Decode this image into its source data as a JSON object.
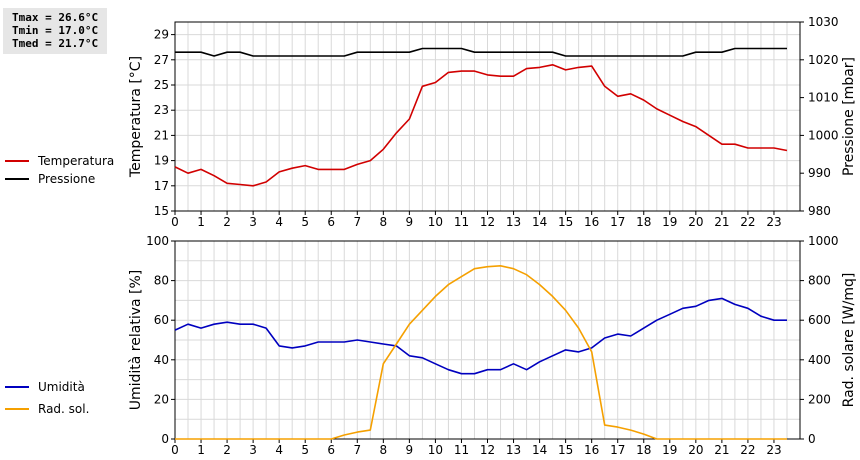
{
  "stats": {
    "tmax": "Tmax = 26.6°C",
    "tmin": "Tmin = 17.0°C",
    "tmed": "Tmed = 21.7°C"
  },
  "colors": {
    "red": "#d10000",
    "black": "#000000",
    "blue": "#0000bf",
    "orange": "#f5a000",
    "grid": "#d9d9d9"
  },
  "chart_data": [
    {
      "type": "line",
      "xlim": [
        0,
        24
      ],
      "x_ticks": [
        0,
        1,
        2,
        3,
        4,
        5,
        6,
        7,
        8,
        9,
        10,
        11,
        12,
        13,
        14,
        15,
        16,
        17,
        18,
        19,
        20,
        21,
        22,
        23
      ],
      "left_axis": {
        "label": "Temperatura [°C]",
        "ylim": [
          15,
          30
        ],
        "ticks": [
          15,
          17,
          19,
          21,
          23,
          25,
          27,
          29
        ]
      },
      "right_axis": {
        "label": "Pressione [mbar]",
        "ylim": [
          980,
          1030
        ],
        "ticks": [
          980,
          990,
          1000,
          1010,
          1020,
          1030
        ]
      },
      "grid": true,
      "legend_position": "left",
      "series": [
        {
          "name": "Temperatura",
          "axis": "left",
          "color": "#d10000",
          "x": [
            0,
            0.5,
            1,
            1.5,
            2,
            2.5,
            3,
            3.5,
            4,
            4.5,
            5,
            5.5,
            6,
            6.5,
            7,
            7.5,
            8,
            8.5,
            9,
            9.5,
            10,
            10.5,
            11,
            11.5,
            12,
            12.5,
            13,
            13.5,
            14,
            14.5,
            15,
            15.5,
            16,
            16.5,
            17,
            17.5,
            18,
            18.5,
            19,
            19.5,
            20,
            20.5,
            21,
            21.5,
            22,
            22.5,
            23,
            23.5
          ],
          "y": [
            18.5,
            18.0,
            18.3,
            17.8,
            17.2,
            17.1,
            17.0,
            17.3,
            18.1,
            18.4,
            18.6,
            18.3,
            18.3,
            18.3,
            18.7,
            19.0,
            19.9,
            21.2,
            22.3,
            24.9,
            25.2,
            26.0,
            26.1,
            26.1,
            25.8,
            25.7,
            25.7,
            26.3,
            26.4,
            26.6,
            26.2,
            26.4,
            26.5,
            24.9,
            24.1,
            24.3,
            23.8,
            23.1,
            22.6,
            22.1,
            21.7,
            21.0,
            20.3,
            20.3,
            20.0,
            20.0,
            20.0,
            19.8
          ]
        },
        {
          "name": "Pressione",
          "axis": "right",
          "color": "#000000",
          "x": [
            0,
            0.5,
            1,
            1.5,
            2,
            2.5,
            3,
            3.5,
            4,
            4.5,
            5,
            5.5,
            6,
            6.5,
            7,
            7.5,
            8,
            8.5,
            9,
            9.5,
            10,
            10.5,
            11,
            11.5,
            12,
            12.5,
            13,
            13.5,
            14,
            14.5,
            15,
            15.5,
            16,
            16.5,
            17,
            17.5,
            18,
            18.5,
            19,
            19.5,
            20,
            20.5,
            21,
            21.5,
            22,
            22.5,
            23,
            23.5
          ],
          "y": [
            1022,
            1022,
            1022,
            1021,
            1022,
            1022,
            1021,
            1021,
            1021,
            1021,
            1021,
            1021,
            1021,
            1021,
            1022,
            1022,
            1022,
            1022,
            1022,
            1023,
            1023,
            1023,
            1023,
            1022,
            1022,
            1022,
            1022,
            1022,
            1022,
            1022,
            1021,
            1021,
            1021,
            1021,
            1021,
            1021,
            1021,
            1021,
            1021,
            1021,
            1022,
            1022,
            1022,
            1023,
            1023,
            1023,
            1023,
            1023
          ]
        }
      ]
    },
    {
      "type": "line",
      "xlim": [
        0,
        24
      ],
      "x_ticks": [
        0,
        1,
        2,
        3,
        4,
        5,
        6,
        7,
        8,
        9,
        10,
        11,
        12,
        13,
        14,
        15,
        16,
        17,
        18,
        19,
        20,
        21,
        22,
        23
      ],
      "left_axis": {
        "label": "Umidità relativa [%]",
        "ylim": [
          0,
          100
        ],
        "ticks": [
          0,
          20,
          40,
          60,
          80,
          100
        ]
      },
      "right_axis": {
        "label": "Rad. solare [W/mq]",
        "ylim": [
          0,
          1000
        ],
        "ticks": [
          0,
          200,
          400,
          600,
          800,
          1000
        ]
      },
      "grid": true,
      "legend_position": "left",
      "series": [
        {
          "name": "Umidità",
          "axis": "left",
          "color": "#0000bf",
          "x": [
            0,
            0.5,
            1,
            1.5,
            2,
            2.5,
            3,
            3.5,
            4,
            4.5,
            5,
            5.5,
            6,
            6.5,
            7,
            7.5,
            8,
            8.5,
            9,
            9.5,
            10,
            10.5,
            11,
            11.5,
            12,
            12.5,
            13,
            13.5,
            14,
            14.5,
            15,
            15.5,
            16,
            16.5,
            17,
            17.5,
            18,
            18.5,
            19,
            19.5,
            20,
            20.5,
            21,
            21.5,
            22,
            22.5,
            23,
            23.5
          ],
          "y": [
            55,
            58,
            56,
            58,
            59,
            58,
            58,
            56,
            47,
            46,
            47,
            49,
            49,
            49,
            50,
            49,
            48,
            47,
            42,
            41,
            38,
            35,
            33,
            33,
            35,
            35,
            38,
            35,
            39,
            42,
            45,
            44,
            46,
            51,
            53,
            52,
            56,
            60,
            63,
            66,
            67,
            70,
            71,
            68,
            66,
            62,
            60,
            60
          ]
        },
        {
          "name": "Rad. sol.",
          "axis": "right",
          "color": "#f5a000",
          "x": [
            0,
            0.5,
            1,
            1.5,
            2,
            2.5,
            3,
            3.5,
            4,
            4.5,
            5,
            5.5,
            6,
            6.5,
            7,
            7.5,
            8,
            8.5,
            9,
            9.5,
            10,
            10.5,
            11,
            11.5,
            12,
            12.5,
            13,
            13.5,
            14,
            14.5,
            15,
            15.5,
            16,
            16.5,
            17,
            17.5,
            18,
            18.5,
            19,
            19.5,
            20,
            20.5,
            21,
            21.5,
            22,
            22.5,
            23,
            23.5
          ],
          "y": [
            0,
            0,
            0,
            0,
            0,
            0,
            0,
            0,
            0,
            0,
            0,
            0,
            0,
            20,
            35,
            45,
            380,
            480,
            580,
            650,
            720,
            780,
            820,
            860,
            870,
            875,
            860,
            830,
            780,
            720,
            650,
            560,
            440,
            70,
            60,
            45,
            25,
            0,
            0,
            0,
            0,
            0,
            0,
            0,
            0,
            0,
            0,
            0
          ]
        }
      ]
    }
  ]
}
